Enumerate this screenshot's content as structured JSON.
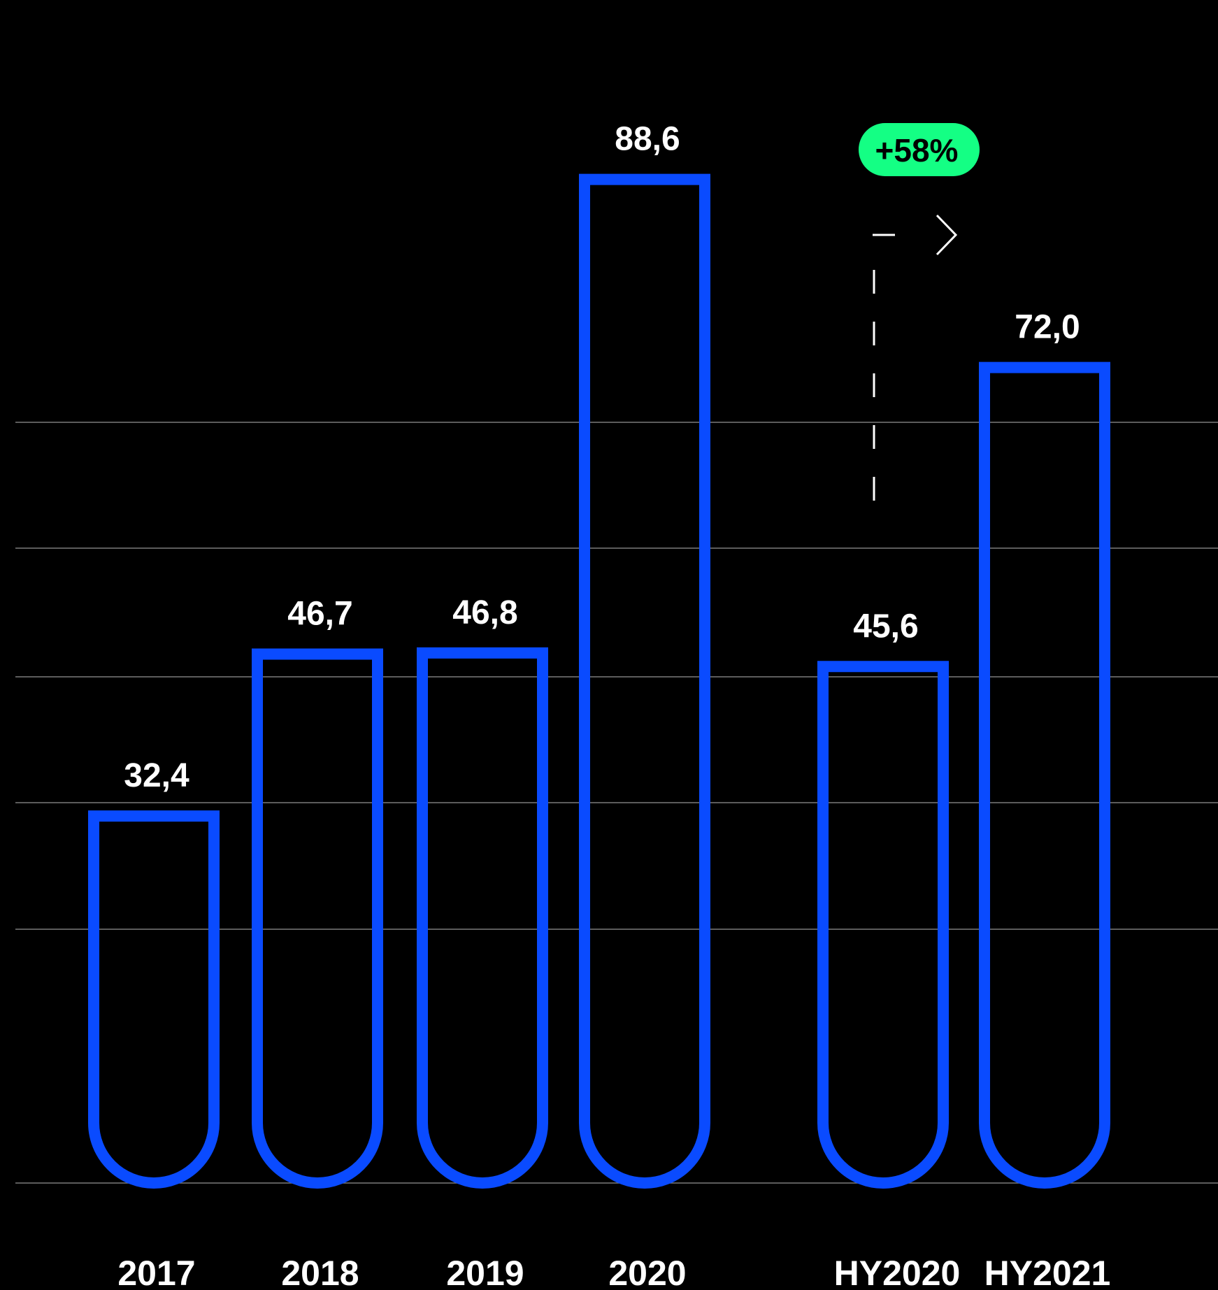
{
  "chart_data": {
    "type": "bar",
    "categories": [
      "2017",
      "2018",
      "2019",
      "2020",
      "HY2020",
      "HY2021"
    ],
    "values": [
      32.4,
      46.7,
      46.8,
      88.6,
      45.6,
      72.0
    ],
    "value_labels": [
      "32,4",
      "46,7",
      "46,8",
      "88,6",
      "45,6",
      "72,0"
    ],
    "grid": true,
    "annotation": {
      "from": "HY2020",
      "to": "HY2021",
      "label": "+58%"
    }
  },
  "colors": {
    "background": "#000000",
    "bar_outline": "#0a4bff",
    "grid": "#7a7a7a",
    "badge": "#14ff84",
    "text": "#ffffff",
    "arrow": "#ffffff"
  }
}
